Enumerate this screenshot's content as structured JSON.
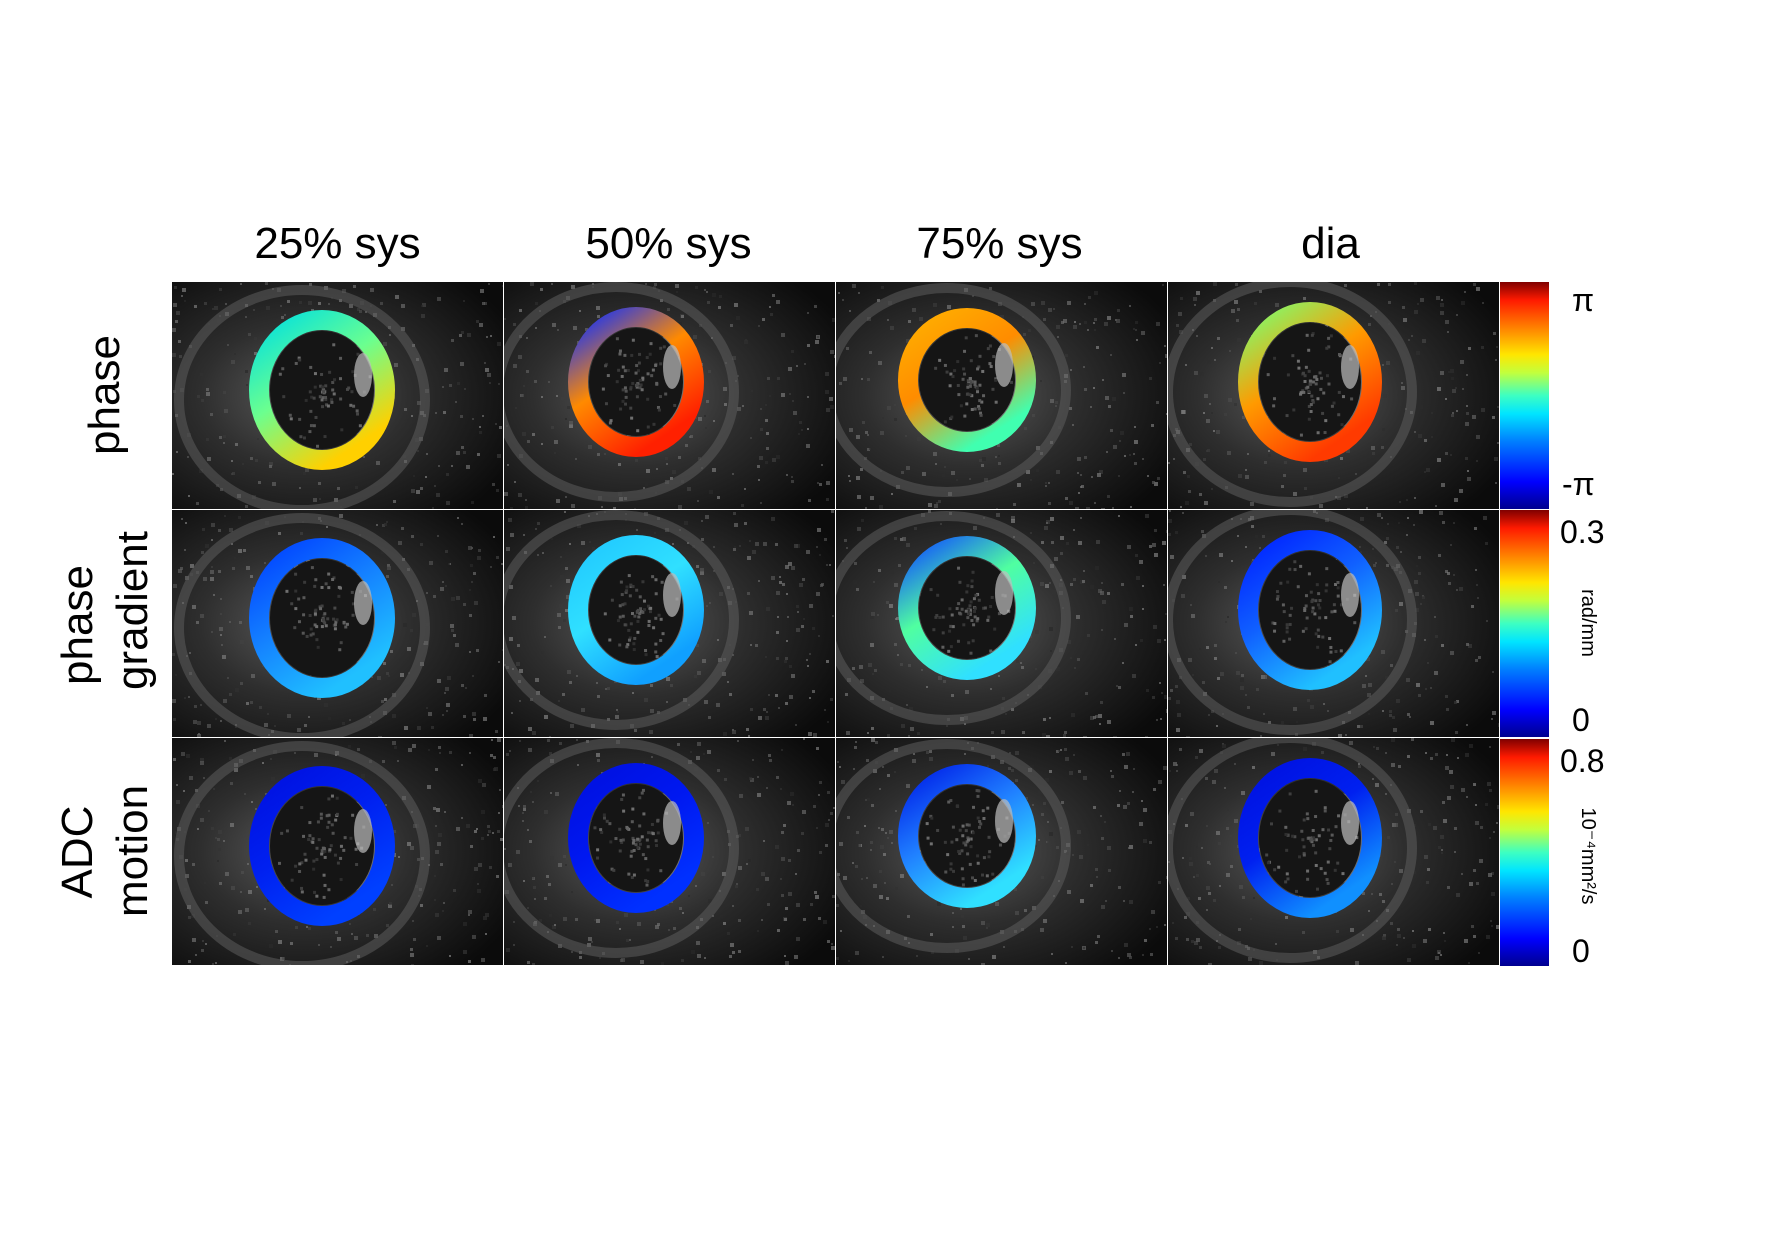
{
  "columns": [
    "25% sys",
    "50% sys",
    "75% sys",
    "dia"
  ],
  "rows": [
    {
      "label": "phase"
    },
    {
      "label_line1": "phase",
      "label_line2": "gradient"
    },
    {
      "label_line1": "ADC",
      "label_line2": "motion"
    }
  ],
  "colorbars": [
    {
      "top": "π",
      "bottom": "-π",
      "unit": ""
    },
    {
      "top": "0.3",
      "bottom": "0",
      "unit": "rad/mm"
    },
    {
      "top": "0.8",
      "bottom": "0",
      "unit": "10⁻⁴mm²/s"
    }
  ],
  "colormap": "jet",
  "colors": {
    "background": "#ffffff",
    "panel_background": "#0e0e0e"
  }
}
